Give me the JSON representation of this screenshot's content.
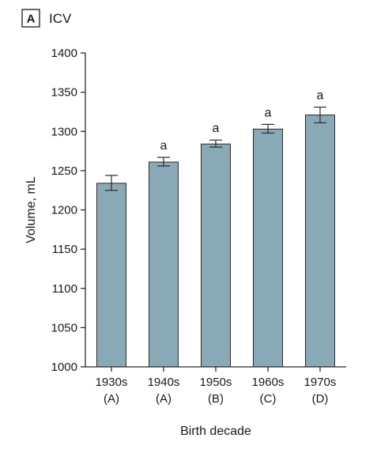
{
  "panel": {
    "letter": "A",
    "title": "ICV"
  },
  "chart_data": {
    "type": "bar",
    "categories": [
      "1930s",
      "1940s",
      "1950s",
      "1960s",
      "1970s"
    ],
    "sub_labels": [
      "(A)",
      "(A)",
      "(B)",
      "(C)",
      "(D)"
    ],
    "values": [
      1234,
      1261,
      1284,
      1303,
      1321
    ],
    "error_low": [
      1225,
      1256,
      1280,
      1298,
      1311
    ],
    "error_high": [
      1244,
      1267,
      1289,
      1309,
      1331
    ],
    "annotations": [
      "",
      "a",
      "a",
      "a",
      "a"
    ],
    "xlabel": "Birth decade",
    "ylabel": "Volume, mL",
    "ylim": [
      1000,
      1400
    ],
    "yticks": [
      1000,
      1050,
      1100,
      1150,
      1200,
      1250,
      1300,
      1350,
      1400
    ],
    "grid": false,
    "colors": {
      "bar_fill": "#8aa9b6",
      "bar_stroke": "#2b2b2b",
      "axis": "#2b2b2b"
    }
  }
}
